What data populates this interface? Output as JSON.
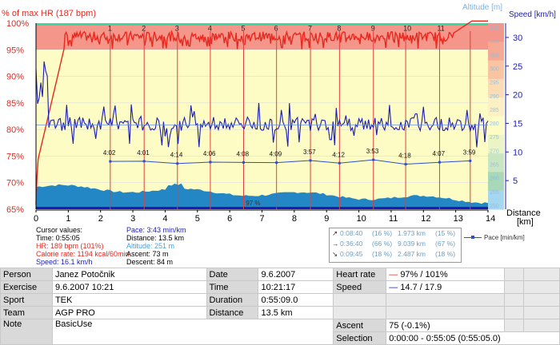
{
  "chart_data": {
    "type": "area",
    "left_axis_label": "% of max HR (187 bpm)",
    "right_axis_label_outer": "Altitude [m]",
    "right_axis_label_inner": "Speed [km/h]",
    "x_axis_label": "Distance [km]",
    "hr_ticks": [
      "100%",
      "95%",
      "90%",
      "85%",
      "80%",
      "75%",
      "70%",
      "65%"
    ],
    "hr_range": [
      65,
      100
    ],
    "speed_ticks": [
      "30",
      "25",
      "20",
      "15",
      "10",
      "5"
    ],
    "speed_range": [
      0,
      32.5
    ],
    "altitude_ticks": [
      "315",
      "310",
      "305",
      "300",
      "295",
      "290",
      "285",
      "280",
      "275",
      "270",
      "265",
      "260",
      "255",
      "250"
    ],
    "x_ticks": [
      "0",
      "1",
      "2",
      "3",
      "4",
      "5",
      "6",
      "7",
      "8",
      "9",
      "10",
      "11",
      "12",
      "13",
      "14"
    ],
    "x_range": [
      0,
      14
    ],
    "laps": [
      {
        "n": "1",
        "km": 2.3,
        "pace": "4:02"
      },
      {
        "n": "2",
        "km": 3.35,
        "pace": "4:01"
      },
      {
        "n": "3",
        "km": 4.38,
        "pace": "4:14"
      },
      {
        "n": "4",
        "km": 5.4,
        "pace": "4:06"
      },
      {
        "n": "5",
        "km": 6.43,
        "pace": "4:08"
      },
      {
        "n": "6",
        "km": 7.45,
        "pace": "4:09"
      },
      {
        "n": "7",
        "km": 8.5,
        "pace": "3:57"
      },
      {
        "n": "8",
        "km": 9.4,
        "pace": "4:12"
      },
      {
        "n": "9",
        "km": 10.45,
        "pace": "3:53"
      },
      {
        "n": "10",
        "km": 11.45,
        "pace": "4:18"
      },
      {
        "n": "11",
        "km": 12.5,
        "pace": "4:07"
      },
      {
        "n": "",
        "km": 13.45,
        "pace": "3:59"
      }
    ],
    "area_label": "97 %",
    "zone_colors": [
      "#f4978a",
      "#fcfcc4",
      "#a6d7f0"
    ],
    "series": [
      {
        "name": "Heart rate",
        "color": "#e8281f"
      },
      {
        "name": "Speed",
        "color": "#1c1cb8"
      },
      {
        "name": "Pace",
        "color": "#2e4fcf"
      },
      {
        "name": "Altitude",
        "color": "#0a7ac4"
      }
    ]
  },
  "cursor": {
    "title": "Cursor values:",
    "time": "Time: 0:55:05",
    "hr": "HR: 189 bpm (101%)",
    "calorie": "Calorie rate: 1194 kcal/60min",
    "speed": "Speed: 16.1 km/h",
    "pace": "Pace: 3:43 min/km",
    "distance": "Distance: 13.5 km",
    "altitude": "Altitude: 251 m",
    "ascent": "Ascent: 73 m",
    "descent": "Descent: 84 m"
  },
  "laps_summary": [
    {
      "arrow": "↗",
      "time": "0:08:40",
      "pct": "(16 %)",
      "dist": "1.973 km",
      "dpct": "(15 %)"
    },
    {
      "arrow": "→",
      "time": "0:36:40",
      "pct": "(66 %)",
      "dist": "9.039 km",
      "dpct": "(67 %)"
    },
    {
      "arrow": "↘",
      "time": "0:09:45",
      "pct": "(18 %)",
      "dist": "2.487 km",
      "dpct": "(18 %)"
    }
  ],
  "legend_pace": "Pace [min/km]",
  "info": {
    "person_k": "Person",
    "person_v": "Janez Potočnik",
    "date_k": "Date",
    "date_v": "9.6.2007",
    "hr_k": "Heart rate",
    "hr_v": "97% / 101%",
    "exercise_k": "Exercise",
    "exercise_v": "9.6.2007 10:21",
    "time_k": "Time",
    "time_v": "10:21:17",
    "speed_k": "Speed",
    "speed_v": "14.7 / 17.9",
    "sport_k": "Sport",
    "sport_v": "TEK",
    "duration_k": "Duration",
    "duration_v": "0:55:09.0",
    "team_k": "Team",
    "team_v": "AGP PRO",
    "distance_k": "Distance",
    "distance_v": "13.5 km",
    "note_k": "Note",
    "note_v": "BasicUse",
    "ascent_k": "Ascent",
    "ascent_v": "75 (-0.1%)",
    "selection_k": "Selection",
    "selection_v": "0:00:00 - 0:55:05 (0:55:05.0)"
  }
}
